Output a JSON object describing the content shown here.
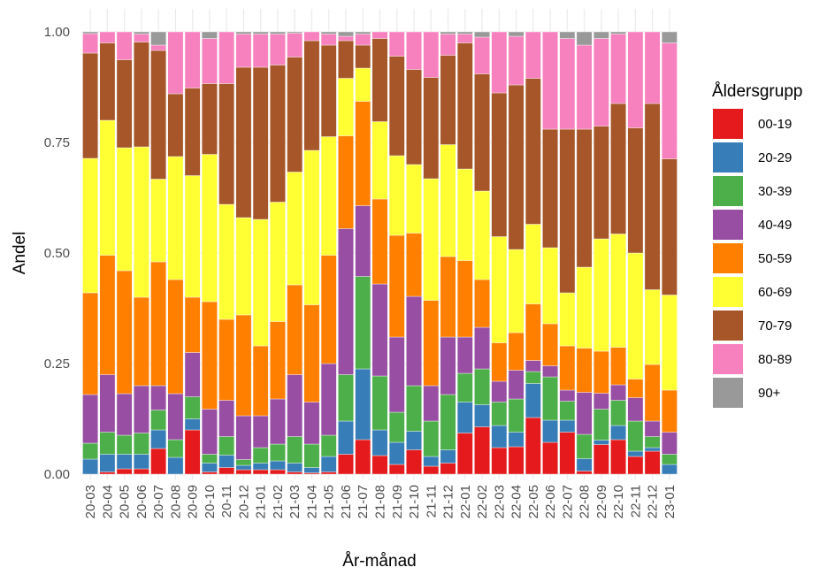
{
  "chart_data": {
    "type": "stacked-bar",
    "x_label": "År-månad",
    "y_label": "Andel",
    "legend_title": "Åldersgrupp",
    "categories": [
      "20-03",
      "20-04",
      "20-05",
      "20-06",
      "20-07",
      "20-08",
      "20-09",
      "20-10",
      "20-11",
      "20-12",
      "21-01",
      "21-02",
      "21-03",
      "21-04",
      "21-05",
      "21-06",
      "21-07",
      "21-08",
      "21-09",
      "21-10",
      "21-11",
      "21-12",
      "22-01",
      "22-02",
      "22-03",
      "22-04",
      "22-05",
      "22-06",
      "22-07",
      "22-08",
      "22-09",
      "22-10",
      "22-11",
      "22-12",
      "23-01"
    ],
    "ylim": [
      0,
      1
    ],
    "yticks": [
      {
        "value": 0,
        "label": "0.00"
      },
      0.25,
      {
        "value": 0.5,
        "label": "0.50"
      },
      0.75,
      {
        "value": 1,
        "label": "1.00"
      }
    ],
    "grid": true,
    "legend_position": "right",
    "series": [
      {
        "name": "00-19",
        "color": "#E41A1C",
        "values": [
          0,
          0.005,
          0.012,
          0.012,
          0.058,
          0,
          0.1,
          0.005,
          0.015,
          0.01,
          0.01,
          0.01,
          0.005,
          0.003,
          0.005,
          0.045,
          0.078,
          0.042,
          0.022,
          0.055,
          0.018,
          0.025,
          0.093,
          0.107,
          0.06,
          0.062,
          0.128,
          0.072,
          0.095,
          0.007,
          0.067,
          0.078,
          0.04,
          0.052,
          0
        ]
      },
      {
        "name": "20-29",
        "color": "#377EB8",
        "values": [
          0.034,
          0.04,
          0.033,
          0.033,
          0.042,
          0.038,
          0.025,
          0.02,
          0.028,
          0.01,
          0.015,
          0.02,
          0.02,
          0.012,
          0.035,
          0.075,
          0.16,
          0.058,
          0.05,
          0.042,
          0.022,
          0.03,
          0.07,
          0.05,
          0.05,
          0.033,
          0.077,
          0.05,
          0.027,
          0.028,
          0.01,
          0.032,
          0.012,
          0.008,
          0.022
        ]
      },
      {
        "name": "30-39",
        "color": "#4DAF4A",
        "values": [
          0.036,
          0.05,
          0.043,
          0.048,
          0.045,
          0.04,
          0.05,
          0.02,
          0.042,
          0.013,
          0.035,
          0.038,
          0.06,
          0.053,
          0.048,
          0.105,
          0.209,
          0.122,
          0.068,
          0.103,
          0.08,
          0.125,
          0.065,
          0.081,
          0.053,
          0.075,
          0.027,
          0.098,
          0.043,
          0.055,
          0.07,
          0.057,
          0.068,
          0.025,
          0.023
        ]
      },
      {
        "name": "40-49",
        "color": "#984EA3",
        "values": [
          0.11,
          0.13,
          0.094,
          0.107,
          0.055,
          0.104,
          0.1,
          0.102,
          0.082,
          0.099,
          0.072,
          0.102,
          0.14,
          0.095,
          0.162,
          0.33,
          0.16,
          0.208,
          0.17,
          0.202,
          0.08,
          0.13,
          0.082,
          0.094,
          0.047,
          0.065,
          0.025,
          0.025,
          0.025,
          0.095,
          0.036,
          0.035,
          0.053,
          0.035,
          0.05
        ]
      },
      {
        "name": "50-59",
        "color": "#FF7F00",
        "values": [
          0.23,
          0.27,
          0.278,
          0.2,
          0.28,
          0.258,
          0.125,
          0.243,
          0.183,
          0.228,
          0.158,
          0.175,
          0.203,
          0.22,
          0.245,
          0.21,
          0.236,
          0.192,
          0.23,
          0.143,
          0.193,
          0.182,
          0.173,
          0.108,
          0.087,
          0.085,
          0.128,
          0.095,
          0.1,
          0.1,
          0.095,
          0.085,
          0.042,
          0.128,
          0.095
        ]
      },
      {
        "name": "60-69",
        "color": "#FFFF33",
        "values": [
          0.304,
          0.305,
          0.278,
          0.34,
          0.187,
          0.278,
          0.275,
          0.333,
          0.26,
          0.22,
          0.286,
          0.27,
          0.255,
          0.349,
          0.268,
          0.13,
          0.075,
          0.175,
          0.18,
          0.155,
          0.275,
          0.253,
          0.207,
          0.2,
          0.24,
          0.188,
          0.18,
          0.172,
          0.12,
          0.183,
          0.254,
          0.256,
          0.285,
          0.169,
          0.215
        ]
      },
      {
        "name": "70-79",
        "color": "#A65628",
        "values": [
          0.238,
          0.175,
          0.199,
          0.237,
          0.291,
          0.142,
          0.198,
          0.16,
          0.273,
          0.34,
          0.344,
          0.31,
          0.26,
          0.248,
          0.207,
          0.085,
          0.052,
          0.188,
          0.225,
          0.215,
          0.229,
          0.202,
          0.285,
          0.265,
          0.325,
          0.372,
          0.33,
          0.268,
          0.37,
          0.312,
          0.255,
          0.295,
          0.283,
          0.421,
          0.308
        ]
      },
      {
        "name": "80-89",
        "color": "#F781BF",
        "values": [
          0.044,
          0.025,
          0.063,
          0.018,
          0.012,
          0.14,
          0.127,
          0.102,
          0.117,
          0.075,
          0.075,
          0.07,
          0.054,
          0.02,
          0.025,
          0.01,
          0.025,
          0.015,
          0.055,
          0.085,
          0.103,
          0.048,
          0.02,
          0.083,
          0.138,
          0.11,
          0.105,
          0.22,
          0.205,
          0.19,
          0.198,
          0.157,
          0.217,
          0.162,
          0.262
        ]
      },
      {
        "name": "90+",
        "color": "#999999",
        "values": [
          0.004,
          0,
          0,
          0.005,
          0.03,
          0,
          0,
          0.015,
          0,
          0.005,
          0.005,
          0.005,
          0.003,
          0,
          0.005,
          0.01,
          0.005,
          0,
          0,
          0,
          0,
          0.005,
          0.005,
          0.012,
          0,
          0.01,
          0,
          0,
          0.015,
          0.03,
          0.015,
          0.005,
          0,
          0,
          0.025
        ]
      }
    ]
  }
}
